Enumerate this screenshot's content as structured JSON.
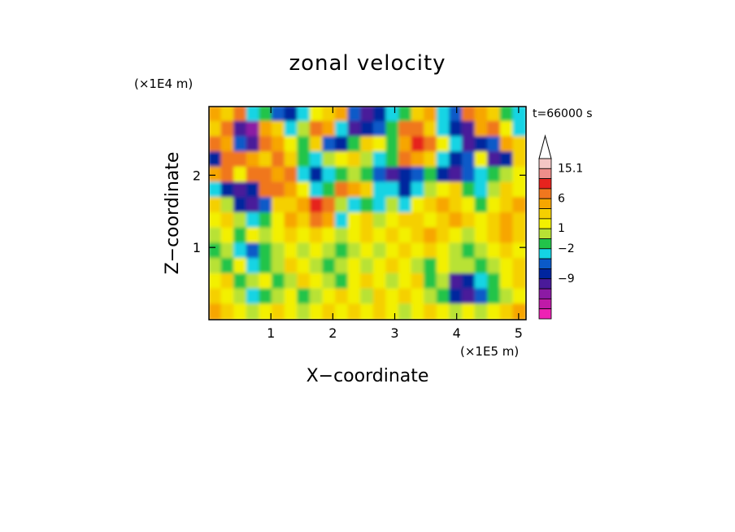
{
  "chart_data": {
    "type": "heatmap",
    "title": "zonal velocity",
    "xlabel": "X−coordinate",
    "ylabel": "Z−coordinate",
    "x_scale_label": "(×1E5 m)",
    "y_scale_label": "(×1E4 m)",
    "time_label": "t=66000 s",
    "xlim": [
      0,
      5.12
    ],
    "ylim": [
      0,
      2.95
    ],
    "x_ticks": [
      "1",
      "2",
      "3",
      "4",
      "5"
    ],
    "y_ticks": [
      "1",
      "2"
    ],
    "colorbar": {
      "labels": [
        "15.1",
        "6",
        "1",
        "−2",
        "−9"
      ],
      "colors_top_to_bottom": [
        "#f4c6c4",
        "#ee8e8a",
        "#e6231e",
        "#f0771e",
        "#f7a600",
        "#f5d000",
        "#f3f000",
        "#b8e234",
        "#22c44a",
        "#14d4e4",
        "#0a5ac8",
        "#00259e",
        "#4a1a9a",
        "#8c1aa4",
        "#c01aa8",
        "#ee22b4"
      ],
      "extend": "max"
    },
    "field_levels_note": "",
    "field": [
      [
        4,
        5,
        3,
        9,
        8,
        10,
        11,
        9,
        6,
        5,
        4,
        10,
        12,
        11,
        9,
        8,
        5,
        4,
        9,
        10,
        3,
        4,
        5,
        8,
        9
      ],
      [
        5,
        3,
        12,
        13,
        4,
        5,
        9,
        7,
        3,
        4,
        9,
        12,
        11,
        10,
        8,
        3,
        3,
        5,
        9,
        11,
        12,
        4,
        3,
        6,
        9
      ],
      [
        3,
        4,
        10,
        12,
        3,
        4,
        6,
        8,
        5,
        10,
        11,
        8,
        5,
        6,
        8,
        4,
        2,
        3,
        6,
        9,
        12,
        11,
        10,
        4,
        5
      ],
      [
        11,
        3,
        3,
        4,
        5,
        3,
        5,
        8,
        9,
        7,
        6,
        5,
        7,
        9,
        8,
        3,
        4,
        5,
        9,
        11,
        10,
        6,
        12,
        11,
        5
      ],
      [
        4,
        3,
        6,
        3,
        3,
        4,
        3,
        9,
        11,
        9,
        8,
        7,
        8,
        10,
        12,
        11,
        10,
        8,
        11,
        12,
        10,
        9,
        8,
        7,
        6
      ],
      [
        9,
        11,
        12,
        11,
        3,
        3,
        4,
        6,
        9,
        8,
        3,
        4,
        5,
        9,
        9,
        11,
        9,
        7,
        6,
        5,
        8,
        9,
        7,
        5,
        6
      ],
      [
        5,
        7,
        11,
        12,
        10,
        5,
        5,
        4,
        2,
        3,
        7,
        9,
        8,
        9,
        7,
        9,
        6,
        5,
        4,
        5,
        6,
        8,
        6,
        5,
        4
      ],
      [
        6,
        5,
        7,
        9,
        8,
        6,
        4,
        5,
        3,
        4,
        9,
        6,
        5,
        7,
        6,
        5,
        5,
        6,
        5,
        4,
        5,
        6,
        5,
        4,
        5
      ],
      [
        7,
        6,
        8,
        6,
        7,
        6,
        5,
        6,
        5,
        6,
        7,
        6,
        5,
        6,
        5,
        6,
        5,
        4,
        5,
        6,
        7,
        6,
        5,
        4,
        5
      ],
      [
        8,
        7,
        9,
        10,
        8,
        7,
        6,
        7,
        6,
        7,
        8,
        7,
        6,
        7,
        6,
        5,
        6,
        5,
        6,
        7,
        8,
        7,
        6,
        5,
        6
      ],
      [
        7,
        8,
        6,
        9,
        8,
        7,
        5,
        6,
        7,
        8,
        7,
        6,
        7,
        6,
        5,
        6,
        7,
        8,
        6,
        7,
        7,
        8,
        7,
        6,
        5
      ],
      [
        6,
        5,
        8,
        7,
        6,
        8,
        7,
        5,
        6,
        7,
        8,
        6,
        5,
        6,
        7,
        6,
        5,
        8,
        7,
        12,
        11,
        9,
        8,
        6,
        5
      ],
      [
        5,
        6,
        7,
        9,
        8,
        7,
        6,
        8,
        7,
        6,
        5,
        6,
        7,
        5,
        6,
        5,
        6,
        7,
        8,
        11,
        12,
        10,
        8,
        7,
        6
      ],
      [
        4,
        5,
        6,
        7,
        6,
        5,
        6,
        7,
        6,
        5,
        6,
        5,
        6,
        5,
        6,
        7,
        6,
        5,
        6,
        7,
        6,
        7,
        6,
        5,
        4
      ]
    ]
  }
}
